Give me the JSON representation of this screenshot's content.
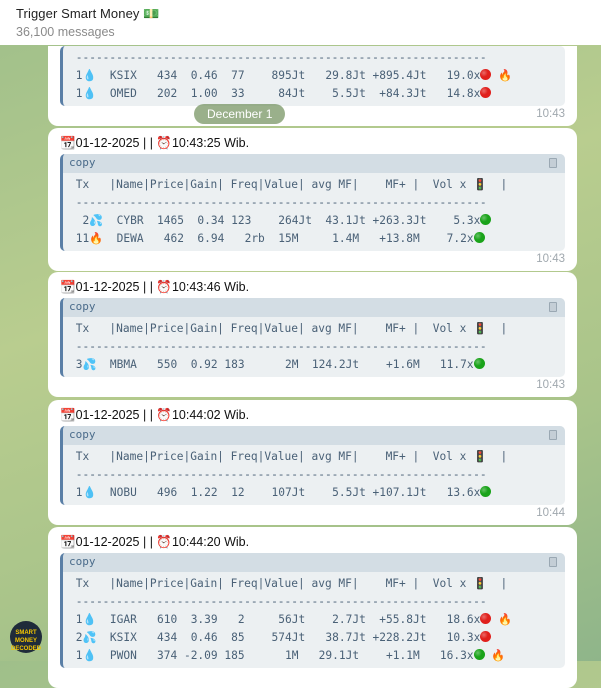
{
  "header": {
    "title": "Trigger Smart Money 💵",
    "subtitle": "36,100 messages"
  },
  "date_pill": "December 1",
  "code_label": "copy",
  "table_header": " Tx   |Name|Price|Gain| Freq|Value| avg MF|    MF+ |  Vol x 🚦  |",
  "separator": " -------------------------------------------------------------",
  "colors": {
    "accent": "#5a7fa6",
    "red": "#e0201c",
    "green": "#1aa31a"
  },
  "messages": [
    {
      "head": "",
      "time": "10:43",
      "rows": [
        {
          "text": " 1💧  KSIX   434  0.46  77    895Jt   29.8Jt +895.4Jt   19.0x",
          "status": "red",
          "extra": "🔥"
        },
        {
          "text": " 1💧  OMED   202  1.00  33     84Jt    5.5Jt  +84.3Jt   14.8x",
          "status": "red",
          "extra": ""
        }
      ]
    },
    {
      "head": "📆01-12-2025 | | ⏰10:43:25 Wib.",
      "time": "10:43",
      "rows": [
        {
          "text": "  2💦  CYBR  1465  0.34 123    264Jt  43.1Jt +263.3Jt    5.3x",
          "status": "green",
          "extra": ""
        },
        {
          "text": " 11🔥  DEWA   462  6.94   2rb  15M     1.4M   +13.8M    7.2x",
          "status": "green",
          "extra": ""
        }
      ]
    },
    {
      "head": "📆01-12-2025 | | ⏰10:43:46 Wib.",
      "time": "10:43",
      "rows": [
        {
          "text": " 3💦  MBMA   550  0.92 183      2M  124.2Jt    +1.6M   11.7x",
          "status": "green",
          "extra": ""
        }
      ]
    },
    {
      "head": "📆01-12-2025 | | ⏰10:44:02 Wib.",
      "time": "10:44",
      "rows": [
        {
          "text": " 1💧  NOBU   496  1.22  12    107Jt    5.5Jt +107.1Jt   13.6x",
          "status": "green",
          "extra": ""
        }
      ]
    },
    {
      "head": "📆01-12-2025 | | ⏰10:44:20 Wib.",
      "time": "",
      "rows": [
        {
          "text": " 1💧  IGAR   610  3.39   2     56Jt    2.7Jt  +55.8Jt   18.6x",
          "status": "red",
          "extra": "🔥"
        },
        {
          "text": " 2💦  KSIX   434  0.46  85    574Jt   38.7Jt +228.2Jt   10.3x",
          "status": "red",
          "extra": ""
        },
        {
          "text": " 1💧  PWON   374 -2.09 185      1M   29.1Jt    +1.1M   16.3x",
          "status": "green",
          "extra": "🔥"
        }
      ]
    }
  ],
  "avatar_text": "SMART MONEY DECODED"
}
